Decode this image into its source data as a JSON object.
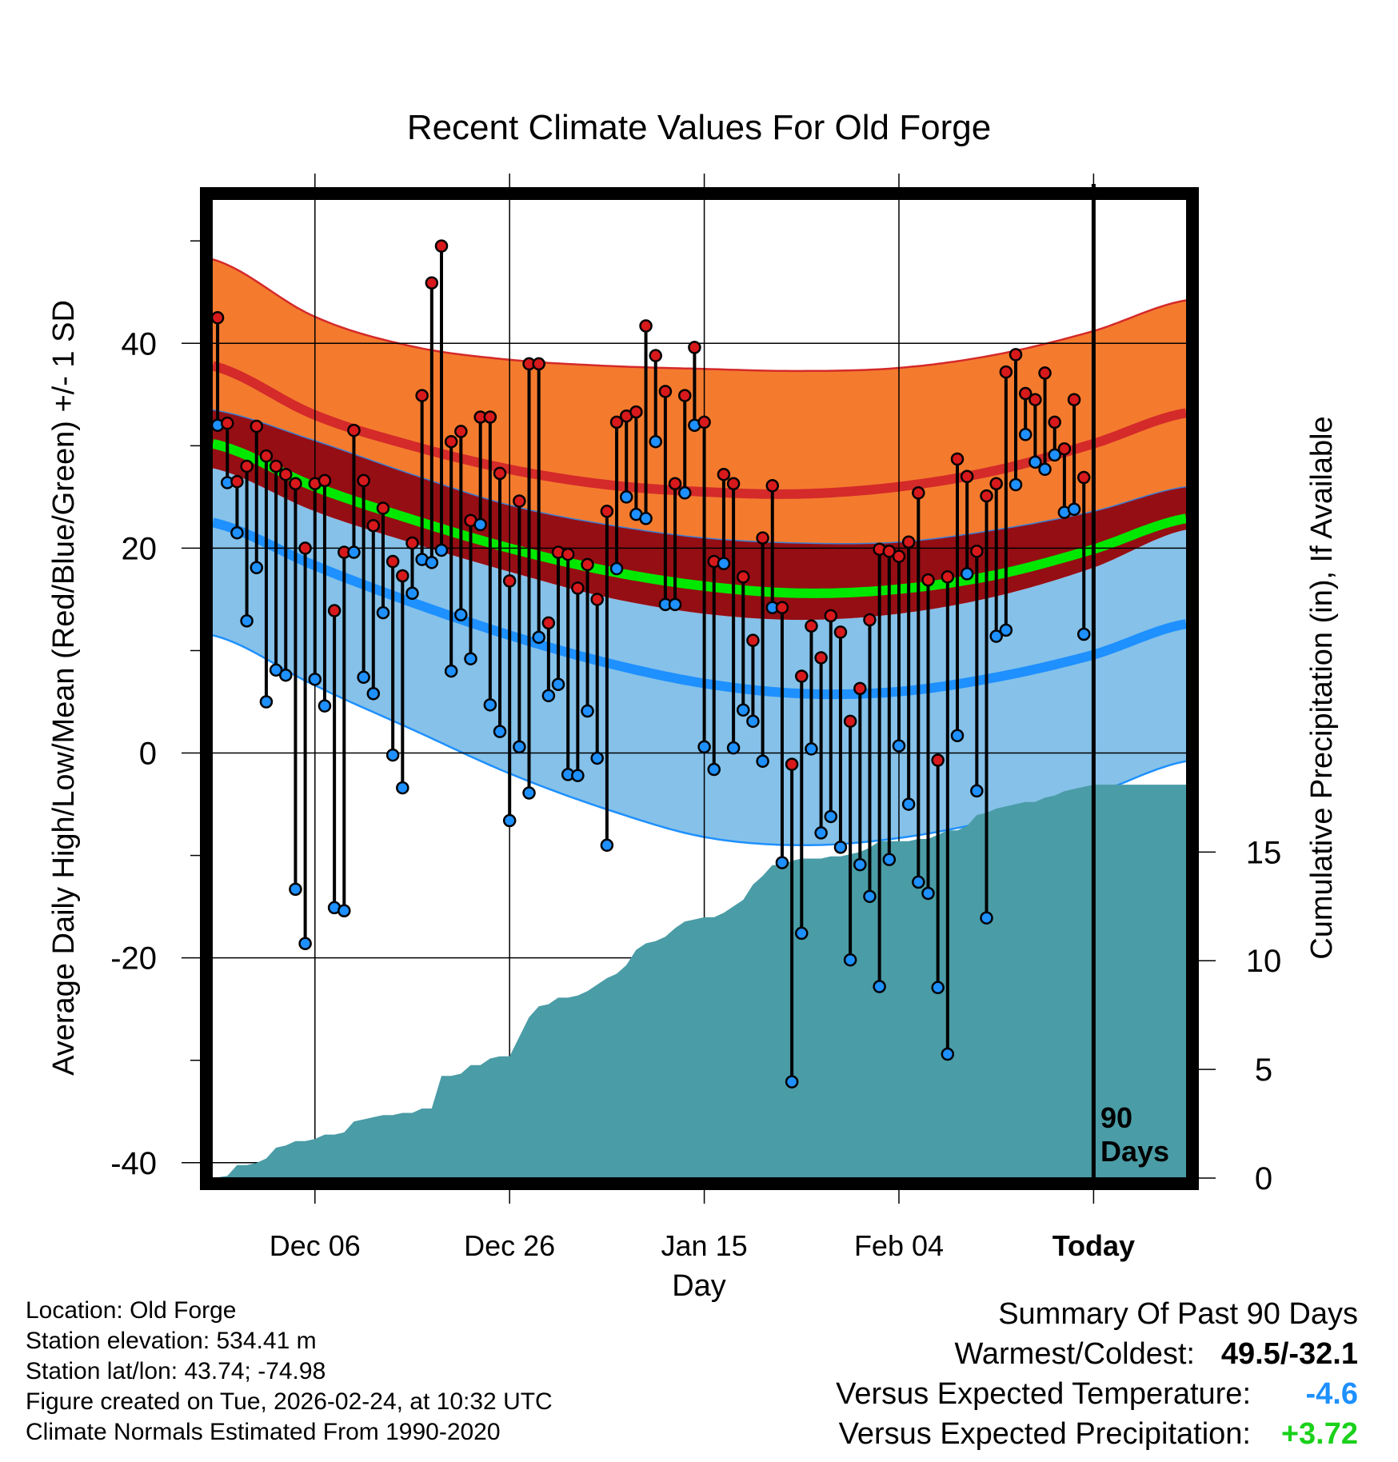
{
  "chart_data": {
    "type": "line",
    "title": "Recent Climate Values For Old Forge",
    "xlabel": "Day",
    "ylabel": "Average Daily High/Low/Mean (Red/Blue/Green) +/- 1 SD",
    "y2label": "Cumulative Precipitation (in), If Available",
    "xlim": [
      -10.5,
      89.5
    ],
    "ylim": [
      -41.5,
      54
    ],
    "y2lim": [
      0,
      45
    ],
    "x_ticks": [
      {
        "x": 0,
        "label": "Dec 06"
      },
      {
        "x": 20,
        "label": "Dec 26"
      },
      {
        "x": 40,
        "label": "Jan 15"
      },
      {
        "x": 60,
        "label": "Feb 04"
      },
      {
        "x": 80,
        "label": "Today"
      }
    ],
    "y_ticks": [
      -40,
      -20,
      0,
      20,
      40
    ],
    "y2_ticks": [
      0,
      5,
      10,
      15
    ],
    "today_x": 80,
    "today_label_line1": "90",
    "today_label_line2": "Days",
    "normals": {
      "x": [
        -10.5,
        0,
        10,
        20,
        30,
        40,
        50,
        60,
        70,
        80,
        89.5
      ],
      "high_mean": [
        37.8,
        33.0,
        30.0,
        27.7,
        26.2,
        25.5,
        25.3,
        26.0,
        27.6,
        30.2,
        33.2
      ],
      "high_upper": [
        48.2,
        42.6,
        39.7,
        38.4,
        37.8,
        37.5,
        37.3,
        37.6,
        38.9,
        41.2,
        44.2
      ],
      "high_lower": [
        33.5,
        30.5,
        27.2,
        24.2,
        22.3,
        21.0,
        20.5,
        20.6,
        21.8,
        23.6,
        26.0
      ],
      "mean": [
        30.2,
        26.0,
        22.8,
        20.0,
        17.8,
        16.3,
        15.6,
        16.0,
        17.4,
        19.9,
        22.9
      ],
      "low_upper": [
        27.8,
        23.6,
        20.5,
        17.7,
        15.2,
        13.6,
        13.0,
        13.6,
        15.3,
        18.1,
        21.8
      ],
      "low_mean": [
        22.5,
        18.3,
        14.7,
        11.5,
        8.8,
        6.8,
        5.8,
        6.0,
        7.4,
        9.6,
        12.6
      ],
      "low_lower": [
        11.5,
        6.6,
        2.3,
        -2.0,
        -5.5,
        -8.2,
        -9.0,
        -8.3,
        -6.5,
        -4.0,
        -0.8
      ]
    },
    "series": [
      {
        "name": "High",
        "color": "#d7191c",
        "values": [
          42.5,
          32.2,
          26.5,
          28.0,
          31.9,
          29.0,
          28.0,
          27.2,
          26.3,
          20.0,
          26.3,
          26.6,
          13.9,
          19.6,
          31.5,
          26.6,
          22.2,
          23.9,
          18.7,
          17.3,
          20.5,
          34.9,
          45.9,
          49.5,
          30.4,
          31.4,
          22.7,
          32.8,
          32.8,
          27.3,
          16.8,
          24.6,
          38.0,
          38.0,
          12.7,
          19.6,
          19.4,
          16.1,
          18.4,
          15.0,
          23.6,
          32.3,
          32.9,
          33.3,
          41.7,
          38.8,
          35.3,
          26.3,
          34.9,
          39.6,
          32.3,
          18.7,
          27.2,
          26.3,
          17.2,
          11.0,
          21.0,
          26.1,
          14.2,
          -1.1,
          7.5,
          12.4,
          9.3,
          13.4,
          11.8,
          3.1,
          6.3,
          13.0,
          19.9,
          19.7,
          19.2,
          20.6,
          25.4,
          16.9,
          -0.7,
          17.2,
          28.7,
          27.0,
          19.7,
          25.1,
          26.3,
          37.2,
          38.9,
          35.1,
          34.5,
          37.1,
          32.3,
          29.7,
          34.5,
          26.9
        ]
      },
      {
        "name": "Low",
        "color": "#1e90ff",
        "values": [
          32.0,
          26.4,
          21.5,
          12.9,
          18.1,
          5.0,
          8.1,
          7.6,
          -13.3,
          -18.6,
          7.2,
          4.6,
          -15.1,
          -15.4,
          19.6,
          7.4,
          5.8,
          13.7,
          -0.2,
          -3.4,
          15.6,
          18.9,
          18.6,
          19.8,
          8.0,
          13.5,
          9.2,
          22.3,
          4.7,
          2.1,
          -6.6,
          0.6,
          -3.9,
          11.3,
          5.6,
          6.7,
          -2.1,
          -2.2,
          4.1,
          -0.5,
          -9.0,
          18.0,
          25.0,
          23.3,
          22.9,
          30.4,
          14.5,
          14.5,
          25.4,
          32.0,
          0.6,
          -1.6,
          18.5,
          0.5,
          4.2,
          3.1,
          -0.8,
          14.2,
          -10.7,
          -32.1,
          -17.6,
          0.4,
          -7.8,
          -6.2,
          -9.2,
          -20.2,
          -10.9,
          -14.0,
          -22.8,
          -10.4,
          0.7,
          -5.0,
          -12.6,
          -13.7,
          -22.9,
          -29.4,
          1.7,
          17.5,
          -3.7,
          -16.1,
          11.4,
          12.0,
          26.2,
          31.1,
          28.4,
          27.7,
          29.1,
          23.5,
          23.8,
          11.6
        ]
      }
    ],
    "precip": {
      "x": [
        -10.5,
        -9,
        -8,
        -7,
        -6,
        -5,
        -4,
        -3,
        -2,
        -1,
        0,
        1,
        2,
        3,
        4,
        5,
        6,
        7,
        8,
        9,
        10,
        11,
        12,
        13,
        14,
        15,
        16,
        17,
        18,
        19,
        20,
        21,
        22,
        23,
        24,
        25,
        26,
        27,
        28,
        29,
        30,
        31,
        32,
        33,
        34,
        35,
        36,
        37,
        38,
        39,
        40,
        41,
        42,
        43,
        44,
        45,
        46,
        47,
        48,
        49,
        50,
        51,
        52,
        53,
        54,
        55,
        56,
        57,
        58,
        59,
        60,
        61,
        62,
        63,
        64,
        65,
        66,
        67,
        68,
        69,
        70,
        71,
        72,
        73,
        74,
        75,
        76,
        77,
        78,
        79,
        80,
        89.5
      ],
      "values": [
        0.0,
        0.1,
        0.6,
        0.6,
        0.7,
        0.9,
        1.4,
        1.5,
        1.7,
        1.7,
        1.8,
        2.0,
        2.0,
        2.1,
        2.6,
        2.7,
        2.8,
        2.9,
        2.9,
        3.0,
        3.0,
        3.2,
        3.2,
        4.7,
        4.7,
        4.8,
        5.2,
        5.2,
        5.5,
        5.6,
        5.6,
        6.5,
        7.4,
        7.9,
        8.0,
        8.3,
        8.3,
        8.4,
        8.6,
        8.9,
        9.2,
        9.4,
        9.8,
        10.5,
        10.8,
        10.9,
        11.1,
        11.5,
        11.8,
        11.9,
        12.0,
        12.0,
        12.2,
        12.5,
        12.8,
        13.5,
        13.9,
        14.4,
        14.4,
        14.6,
        14.7,
        14.7,
        14.7,
        14.8,
        14.8,
        14.9,
        15.0,
        15.2,
        15.5,
        15.5,
        15.5,
        15.5,
        15.6,
        15.6,
        15.8,
        16.0,
        16.0,
        16.2,
        16.7,
        16.8,
        17.0,
        17.1,
        17.2,
        17.3,
        17.3,
        17.5,
        17.6,
        17.8,
        17.9,
        18.0,
        18.1,
        18.1
      ]
    },
    "colors": {
      "high_band": "#f47b2e",
      "high_line": "#d42a2a",
      "mean_band": "#950e14",
      "mean_line": "#00e800",
      "low_band": "#85c1e9",
      "low_line": "#1e90ff",
      "precip_fill": "#4a9ca6"
    }
  },
  "info": {
    "location": "Location: Old Forge",
    "elevation": "Station elevation: 534.41 m",
    "latlon": "Station lat/lon: 43.74; -74.98",
    "created": "Figure created on Tue, 2026-02-24, at 10:32 UTC",
    "normals": "Climate Normals Estimated From 1990-2020"
  },
  "summary": {
    "heading": "Summary Of Past 90 Days",
    "warm_label": "Warmest/Coldest:",
    "warm_value": "49.5/-32.1",
    "temp_label": "Versus Expected Temperature:",
    "temp_value": "-4.6",
    "precip_label": "Versus Expected Precipitation:",
    "precip_value": "+3.72"
  }
}
